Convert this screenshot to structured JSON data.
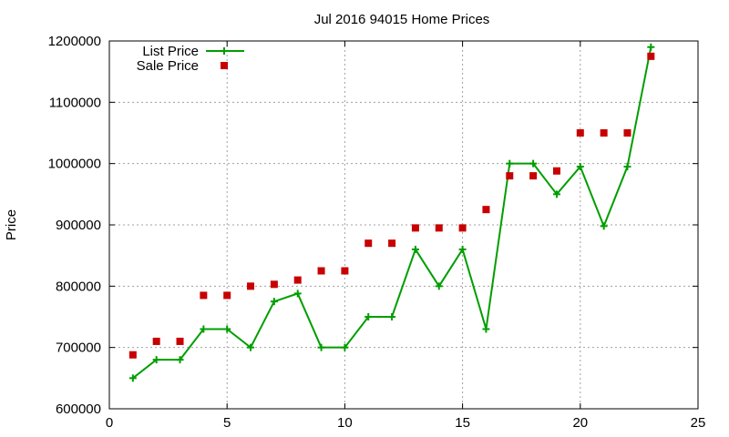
{
  "chart_data": {
    "type": "line",
    "title": "Jul 2016 94015 Home Prices",
    "xlabel": "",
    "ylabel": "Price",
    "xlim": [
      0,
      25
    ],
    "ylim": [
      600000,
      1200000
    ],
    "x_ticks": [
      0,
      5,
      10,
      15,
      20,
      25
    ],
    "y_ticks": [
      600000,
      700000,
      800000,
      900000,
      1000000,
      1100000,
      1200000
    ],
    "grid": true,
    "legend_position": "top-left",
    "series": [
      {
        "name": "List Price",
        "style": "line-plus-markers",
        "color": "#009e00",
        "x": [
          1,
          2,
          3,
          4,
          5,
          6,
          7,
          8,
          9,
          10,
          11,
          12,
          13,
          14,
          15,
          16,
          17,
          18,
          19,
          20,
          21,
          22,
          23
        ],
        "values": [
          650000,
          680000,
          680000,
          730000,
          730000,
          700000,
          775000,
          788000,
          700000,
          700000,
          750000,
          750000,
          860000,
          800000,
          860000,
          730000,
          1000000,
          1000000,
          950000,
          995000,
          898000,
          995000,
          1190000
        ]
      },
      {
        "name": "Sale Price",
        "style": "square-markers",
        "color": "#c80000",
        "x": [
          1,
          2,
          3,
          4,
          5,
          6,
          7,
          8,
          9,
          10,
          11,
          12,
          13,
          14,
          15,
          16,
          17,
          18,
          19,
          20,
          21,
          22,
          23
        ],
        "values": [
          688000,
          710000,
          710000,
          785000,
          785000,
          800000,
          803000,
          810000,
          825000,
          825000,
          870000,
          870000,
          895000,
          895000,
          895000,
          925000,
          980000,
          980000,
          988000,
          1050000,
          1050000,
          1050000,
          1175000
        ]
      }
    ]
  }
}
